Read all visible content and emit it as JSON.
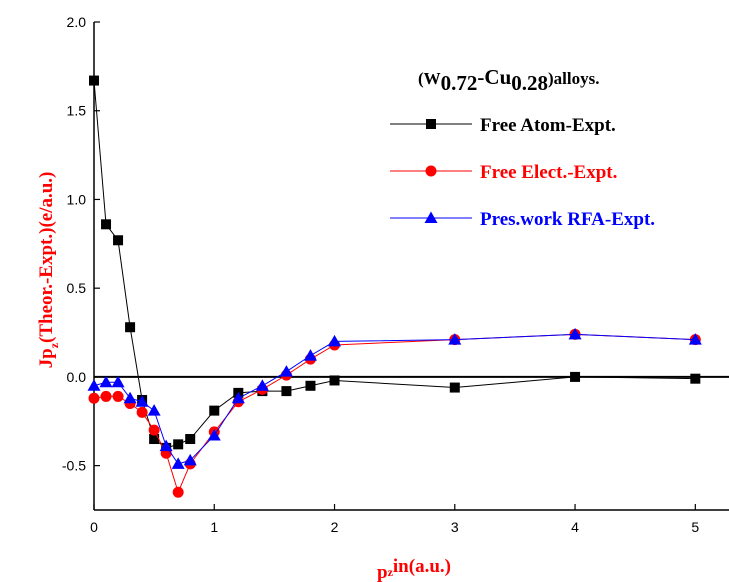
{
  "chart_data": {
    "type": "line",
    "annotation": [
      "(W",
      "0.72",
      "-Cu",
      "0.28",
      ")alloys."
    ],
    "x_label": [
      "p",
      "z",
      "in(a.u.)"
    ],
    "y_label": [
      "Jp",
      "z",
      "(Theor.-Expt.)(e/a.u.)"
    ],
    "x": [
      0,
      0.1,
      0.2,
      0.3,
      0.4,
      0.5,
      0.6,
      0.7,
      0.8,
      1.0,
      1.2,
      1.4,
      1.6,
      1.8,
      2,
      3,
      4,
      5
    ],
    "series": [
      {
        "name": "Free Atom-Expt.",
        "color": "#000000",
        "marker": "square",
        "values": [
          1.67,
          0.86,
          0.77,
          0.28,
          -0.13,
          -0.35,
          -0.4,
          -0.38,
          -0.35,
          -0.19,
          -0.09,
          -0.08,
          -0.08,
          -0.05,
          -0.02,
          -0.06,
          0.0,
          -0.01
        ]
      },
      {
        "name": "Free Elect.-Expt.",
        "color": "#ff0000",
        "marker": "circle",
        "values": [
          -0.12,
          -0.11,
          -0.11,
          -0.15,
          -0.2,
          -0.3,
          -0.43,
          -0.65,
          -0.49,
          -0.31,
          -0.14,
          -0.07,
          0.01,
          0.1,
          0.18,
          0.21,
          0.24,
          0.21
        ]
      },
      {
        "name": "Pres.work RFA-Expt.",
        "color": "#0000ff",
        "marker": "triangle",
        "values": [
          -0.05,
          -0.03,
          -0.03,
          -0.12,
          -0.14,
          -0.19,
          -0.39,
          -0.49,
          -0.47,
          -0.33,
          -0.12,
          -0.05,
          0.03,
          0.12,
          0.2,
          0.21,
          0.24,
          0.21
        ]
      }
    ],
    "xlim": [
      0,
      5.28
    ],
    "ylim": [
      -0.75,
      2.0
    ],
    "xticks": [
      0,
      1,
      2,
      3,
      4,
      5
    ],
    "yticks": [
      -0.5,
      {
        "value": 0,
        "label": "0.0"
      },
      0.5,
      {
        "value": 1,
        "label": "1.0"
      },
      1.5,
      {
        "value": 2,
        "label": "2.0"
      }
    ],
    "reference_line": 0
  }
}
